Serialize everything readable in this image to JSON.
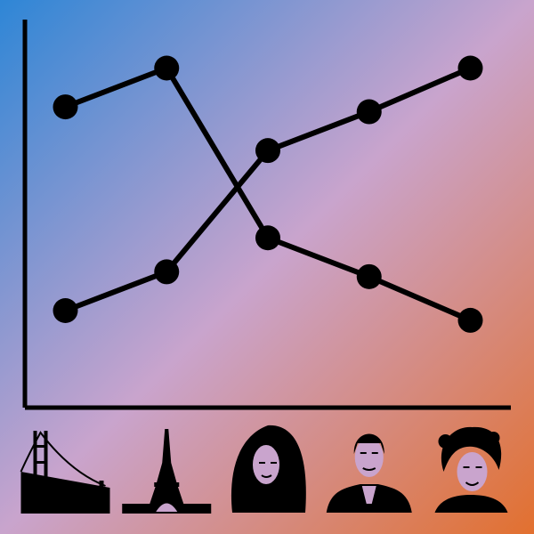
{
  "colors": {
    "gradient_start": "#2e86d6",
    "gradient_mid": "#c9a4cd",
    "gradient_end": "#e2702f",
    "ink": "#000000"
  },
  "chart_data": {
    "type": "line",
    "x": [
      1,
      2,
      3,
      4,
      5
    ],
    "series": [
      {
        "values": [
          6.2,
          7.0,
          3.5,
          2.7,
          1.8
        ]
      },
      {
        "values": [
          2.0,
          2.8,
          5.3,
          6.1,
          7.0
        ]
      }
    ],
    "xlim": [
      0.6,
      5.4
    ],
    "ylim": [
      0,
      8
    ],
    "grid": false,
    "legend": "none"
  },
  "icons": [
    {
      "name": "golden-gate-bridge-icon"
    },
    {
      "name": "eiffel-tower-icon"
    },
    {
      "name": "woman-long-hair-portrait-icon"
    },
    {
      "name": "man-suit-portrait-icon"
    },
    {
      "name": "woman-curly-hair-portrait-icon"
    }
  ]
}
